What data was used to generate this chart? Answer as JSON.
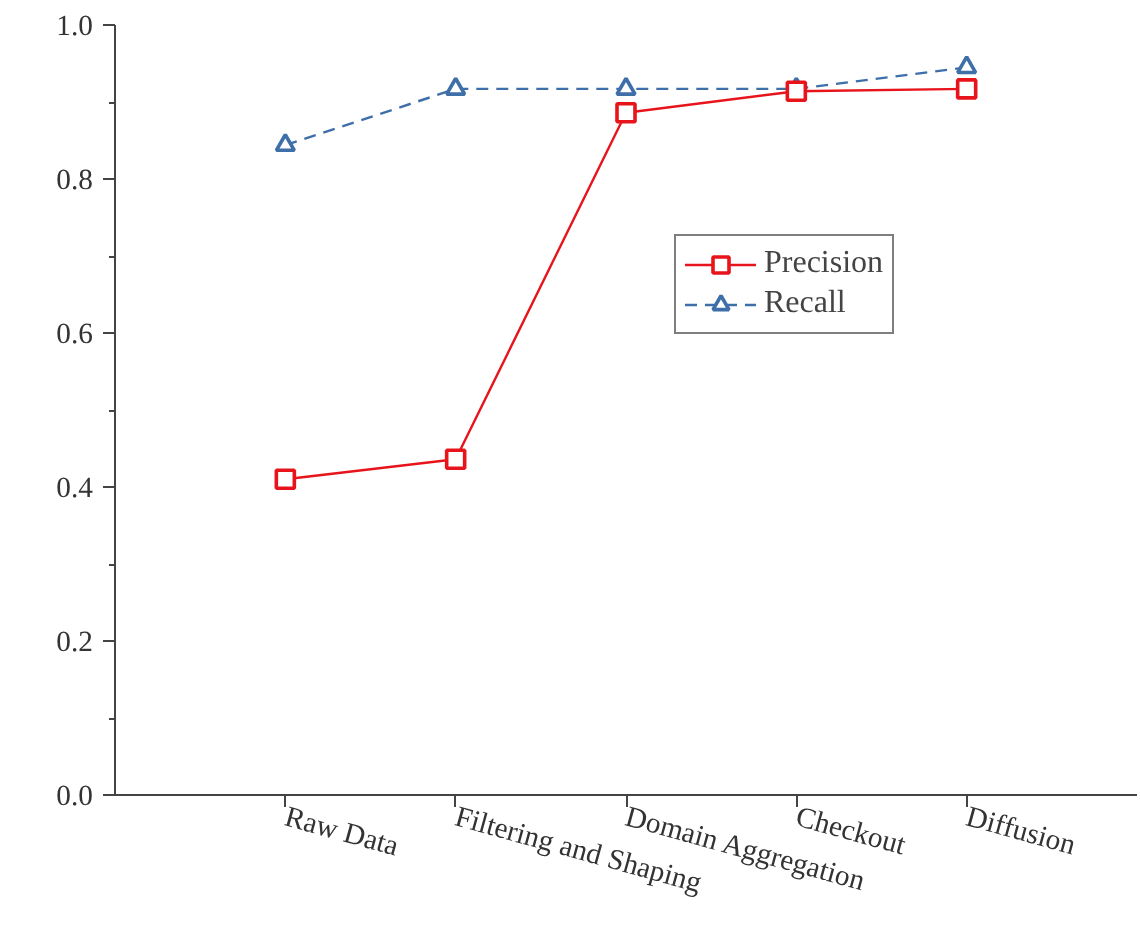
{
  "chart_data": {
    "type": "line",
    "categories": [
      "Raw Data",
      "Filtering and Shaping",
      "Domain Aggregation",
      "Checkout",
      "Diffusion"
    ],
    "series": [
      {
        "name": "Precision",
        "color": "#e8141c",
        "values": [
          0.41,
          0.436,
          0.886,
          0.914,
          0.917
        ],
        "marker": "square",
        "line_style": "solid"
      },
      {
        "name": "Recall",
        "color": "#3f6fa8",
        "values": [
          0.844,
          0.917,
          0.917,
          0.917,
          0.945
        ],
        "marker": "triangle",
        "line_style": "dashed"
      }
    ],
    "ylim": [
      0,
      1
    ],
    "yticks": [
      {
        "value": 0,
        "label": "0.0"
      },
      {
        "value": 0.1,
        "label": null
      },
      0.2,
      {
        "value": 0.3,
        "label": null
      },
      0.4,
      {
        "value": 0.5,
        "label": null
      },
      0.6,
      {
        "value": 0.7,
        "label": null
      },
      0.8,
      {
        "value": 0.9,
        "label": null
      },
      {
        "value": 1,
        "label": "1.0"
      }
    ],
    "grid": false,
    "legend": "top right"
  }
}
